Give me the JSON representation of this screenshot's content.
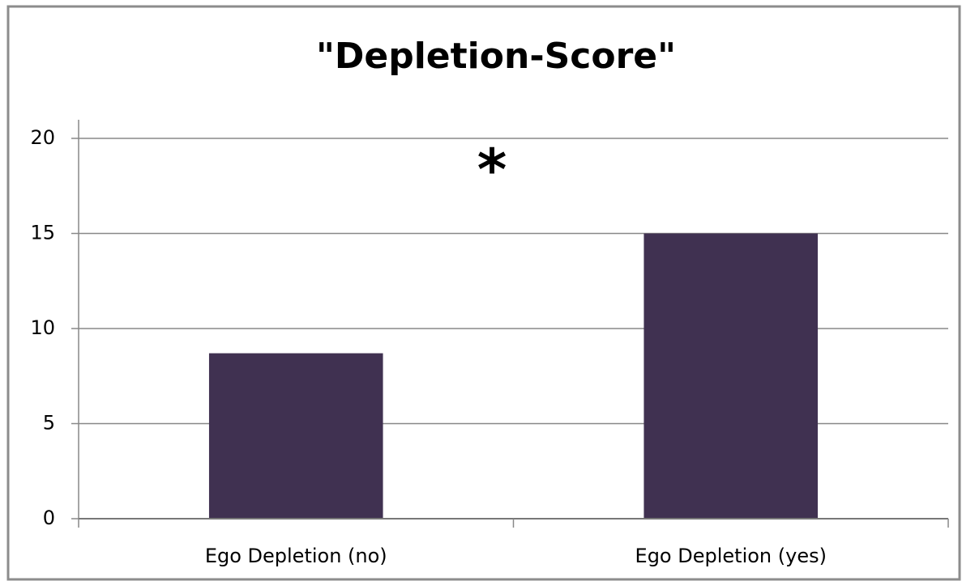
{
  "chart_data": {
    "type": "bar",
    "title": "\"Depletion-Score\"",
    "annotation": "*",
    "categories": [
      "Ego Depletion (no)",
      "Ego Depletion (yes)"
    ],
    "values": [
      8.7,
      15
    ],
    "color": "#403151",
    "ylim": [
      0,
      20
    ],
    "yticks": [
      0,
      5,
      10,
      15,
      20
    ],
    "grid": true
  }
}
